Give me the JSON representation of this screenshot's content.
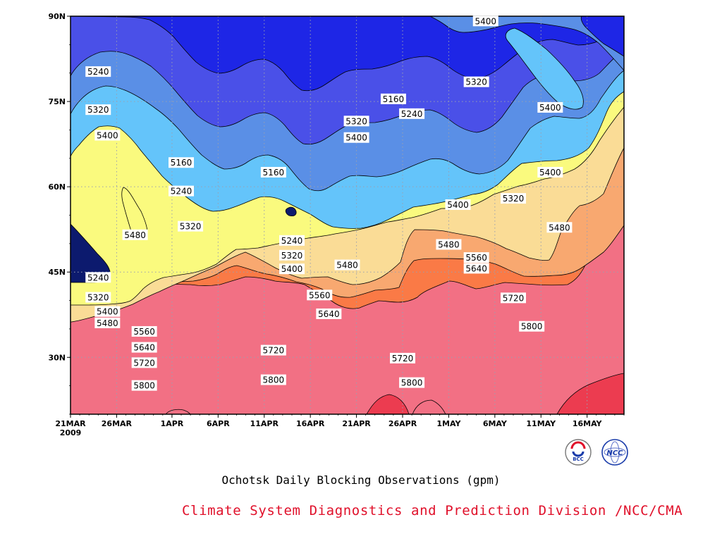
{
  "chart_data": {
    "type": "heatmap",
    "title": "Ochotsk Daily Blocking Observations (gpm)",
    "x_tick_labels": [
      "21MAR",
      "26MAR",
      "1APR",
      "6APR",
      "11APR",
      "16APR",
      "21APR",
      "26APR",
      "1MAY",
      "6MAY",
      "11MAY",
      "16MAY"
    ],
    "x_year_label": "2009",
    "x_range": [
      "2009-03-21",
      "2009-05-20"
    ],
    "y_tick_labels": [
      "30N",
      "45N",
      "60N",
      "75N",
      "90N"
    ],
    "y_ticks": [
      30,
      45,
      60,
      75,
      90
    ],
    "y_range": [
      20,
      90
    ],
    "contour_levels": [
      5160,
      5240,
      5320,
      5400,
      5480,
      5560,
      5640,
      5720,
      5800
    ],
    "grid": true,
    "fill_colors": [
      "#0c1a6e",
      "#1e26e6",
      "#4a50e8",
      "#5a8fe6",
      "#64c4fa",
      "#fafa7e",
      "#fadc96",
      "#f8a870",
      "#fa7a46",
      "#f27084",
      "#ec3c50"
    ],
    "contour_labels": [
      {
        "text": "5240",
        "date": "2009-03-24",
        "lat": 80.2
      },
      {
        "text": "5320",
        "date": "2009-03-24",
        "lat": 73.5
      },
      {
        "text": "5400",
        "date": "2009-03-25",
        "lat": 69.0
      },
      {
        "text": "5480",
        "date": "2009-03-28",
        "lat": 51.5
      },
      {
        "text": "5240",
        "date": "2009-03-24",
        "lat": 44.0
      },
      {
        "text": "5320",
        "date": "2009-03-24",
        "lat": 40.5
      },
      {
        "text": "5400",
        "date": "2009-03-25",
        "lat": 38.0
      },
      {
        "text": "5480",
        "date": "2009-03-25",
        "lat": 36.0
      },
      {
        "text": "5560",
        "date": "2009-03-29",
        "lat": 34.5
      },
      {
        "text": "5640",
        "date": "2009-03-29",
        "lat": 31.7
      },
      {
        "text": "5720",
        "date": "2009-03-29",
        "lat": 29.0
      },
      {
        "text": "5800",
        "date": "2009-03-29",
        "lat": 25.0
      },
      {
        "text": "5160",
        "date": "2009-04-02",
        "lat": 64.2
      },
      {
        "text": "5240",
        "date": "2009-04-02",
        "lat": 59.2
      },
      {
        "text": "5320",
        "date": "2009-04-03",
        "lat": 53.0
      },
      {
        "text": "5160",
        "date": "2009-04-12",
        "lat": 62.5
      },
      {
        "text": "5240",
        "date": "2009-04-14",
        "lat": 50.5
      },
      {
        "text": "5320",
        "date": "2009-04-14",
        "lat": 47.9
      },
      {
        "text": "5400",
        "date": "2009-04-14",
        "lat": 45.5
      },
      {
        "text": "5720",
        "date": "2009-04-12",
        "lat": 31.2
      },
      {
        "text": "5800",
        "date": "2009-04-12",
        "lat": 26.0
      },
      {
        "text": "5480",
        "date": "2009-04-20",
        "lat": 46.2
      },
      {
        "text": "5560",
        "date": "2009-04-17",
        "lat": 40.9
      },
      {
        "text": "5640",
        "date": "2009-04-18",
        "lat": 37.6
      },
      {
        "text": "5320",
        "date": "2009-04-21",
        "lat": 71.5
      },
      {
        "text": "5400",
        "date": "2009-04-21",
        "lat": 68.6
      },
      {
        "text": "5160",
        "date": "2009-04-25",
        "lat": 75.4
      },
      {
        "text": "5240",
        "date": "2009-04-27",
        "lat": 72.8
      },
      {
        "text": "5720",
        "date": "2009-04-26",
        "lat": 29.8
      },
      {
        "text": "5800",
        "date": "2009-04-27",
        "lat": 25.5
      },
      {
        "text": "5400",
        "date": "2009-05-02",
        "lat": 56.8
      },
      {
        "text": "5480",
        "date": "2009-05-01",
        "lat": 49.8
      },
      {
        "text": "5560",
        "date": "2009-05-04",
        "lat": 47.5
      },
      {
        "text": "5640",
        "date": "2009-05-04",
        "lat": 45.6
      },
      {
        "text": "5320",
        "date": "2009-05-04",
        "lat": 78.4
      },
      {
        "text": "5400",
        "date": "2009-05-05",
        "lat": 89.1
      },
      {
        "text": "5320",
        "date": "2009-05-08",
        "lat": 57.9
      },
      {
        "text": "5720",
        "date": "2009-05-08",
        "lat": 40.4
      },
      {
        "text": "5800",
        "date": "2009-05-10",
        "lat": 35.4
      },
      {
        "text": "5400",
        "date": "2009-05-12",
        "lat": 73.9
      },
      {
        "text": "5400",
        "date": "2009-05-12",
        "lat": 62.5
      },
      {
        "text": "5480",
        "date": "2009-05-13",
        "lat": 52.8
      }
    ]
  },
  "labels": {
    "title": "Ochotsk Daily Blocking Observations (gpm)",
    "credit": "Climate System Diagnostics and Prediction Division /NCC/CMA",
    "logo_bcc": "BCC",
    "logo_ncc": "NCC"
  }
}
